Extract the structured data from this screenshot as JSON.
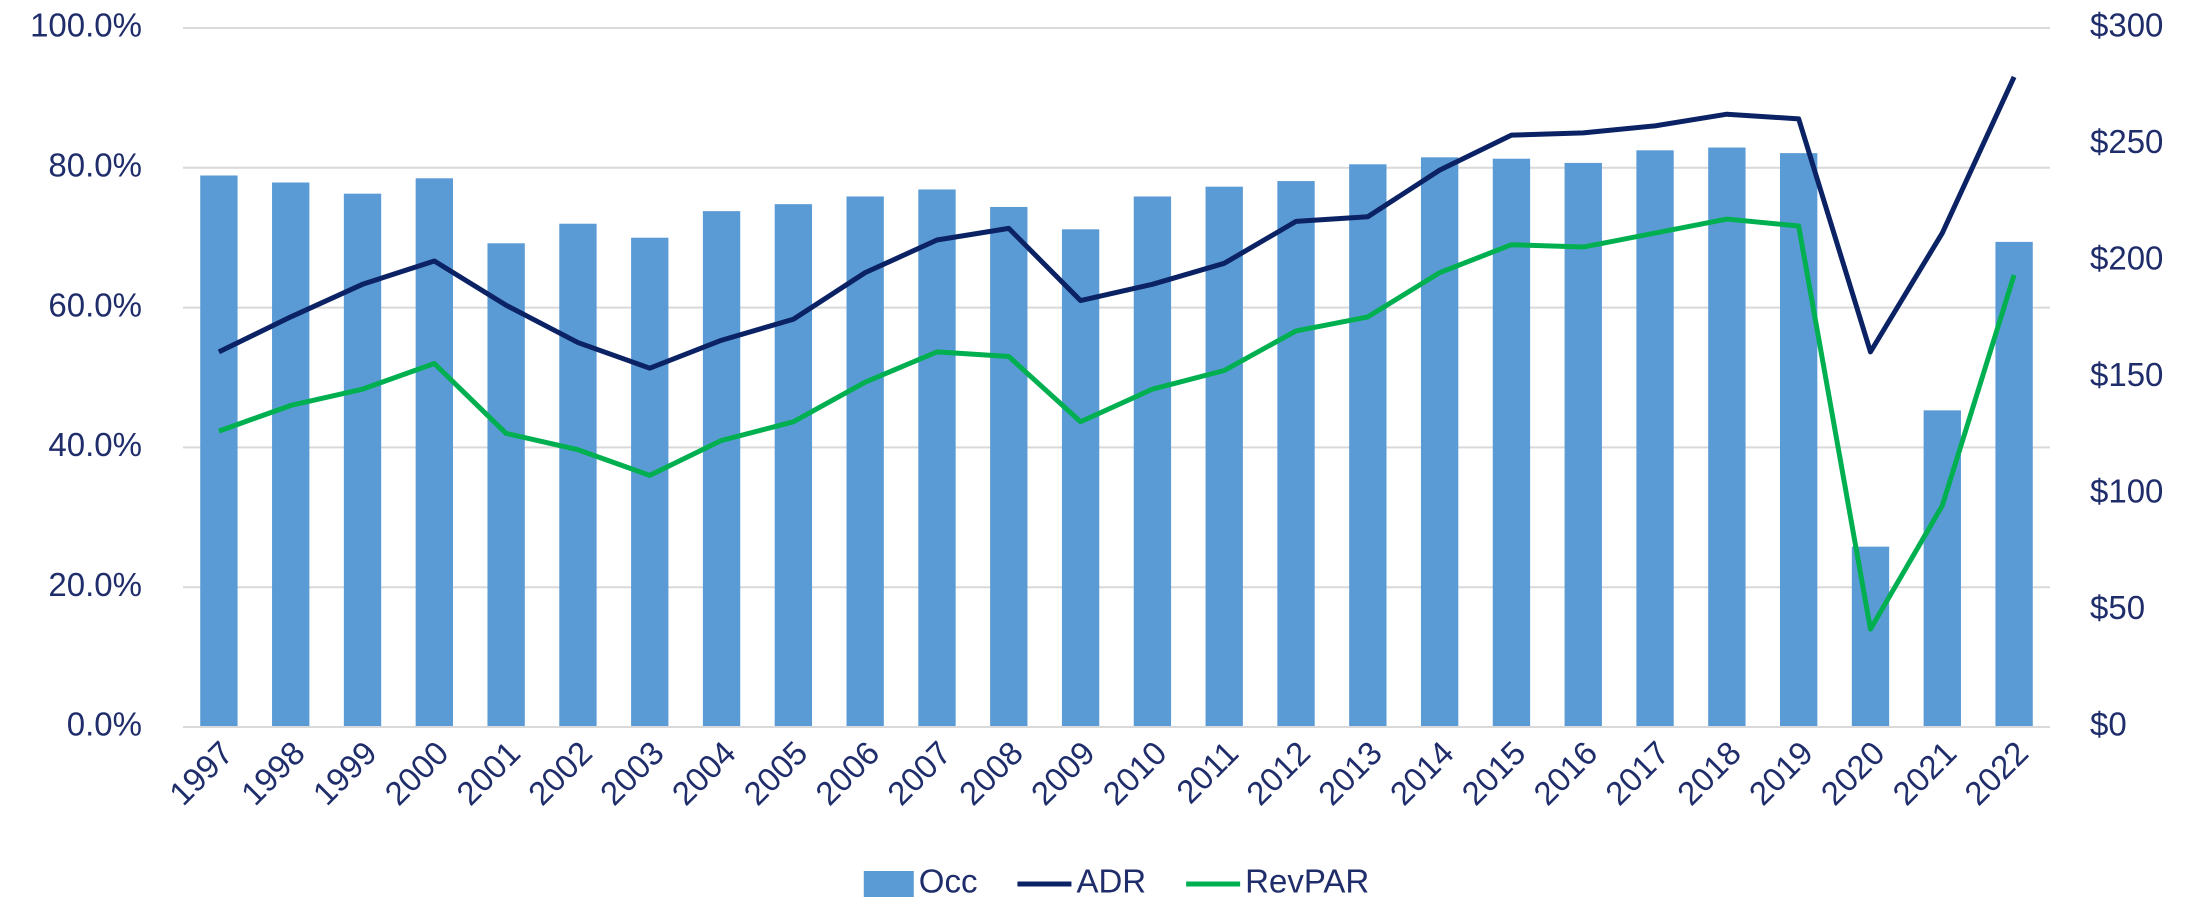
{
  "chart_data": {
    "type": "bar",
    "categories": [
      "1997",
      "1998",
      "1999",
      "2000",
      "2001",
      "2002",
      "2003",
      "2004",
      "2005",
      "2006",
      "2007",
      "2008",
      "2009",
      "2010",
      "2011",
      "2012",
      "2013",
      "2014",
      "2015",
      "2016",
      "2017",
      "2018",
      "2019",
      "2020",
      "2021",
      "2022"
    ],
    "series": [
      {
        "name": "Occ",
        "type": "bar",
        "color": "#5b9bd5",
        "values": [
          78.9,
          77.9,
          76.3,
          78.5,
          69.2,
          72.0,
          70.0,
          73.8,
          74.8,
          75.9,
          76.9,
          74.4,
          71.2,
          75.9,
          77.3,
          78.1,
          80.5,
          81.5,
          81.3,
          80.7,
          82.5,
          82.9,
          82.1,
          25.8,
          45.3,
          69.4
        ]
      },
      {
        "name": "ADR",
        "type": "line",
        "axis": "y2",
        "color": "#0b2265",
        "values": [
          161,
          176,
          190,
          200,
          181,
          165,
          154,
          166,
          175,
          195,
          209,
          214,
          183,
          190,
          199,
          217,
          219,
          239,
          254,
          255,
          258,
          263,
          261,
          161,
          212,
          279
        ]
      },
      {
        "name": "RevPAR",
        "type": "line",
        "axis": "y2",
        "color": "#00b050",
        "values": [
          127,
          138,
          145,
          156,
          126,
          119,
          108,
          123,
          131,
          148,
          161,
          159,
          131,
          145,
          153,
          170,
          176,
          195,
          207,
          206,
          212,
          218,
          215,
          42,
          95,
          194
        ]
      }
    ],
    "ylim": [
      0,
      100
    ],
    "yticks": [
      {
        "value": 0,
        "label": "0.0%"
      },
      {
        "value": 20,
        "label": "20.0%"
      },
      {
        "value": 40,
        "label": "40.0%"
      },
      {
        "value": 60,
        "label": "60.0%"
      },
      {
        "value": 80,
        "label": "80.0%"
      },
      {
        "value": 100,
        "label": "100.0%"
      }
    ],
    "y2lim": [
      0,
      300
    ],
    "y2ticks": [
      {
        "value": 0,
        "label": "$0"
      },
      {
        "value": 50,
        "label": "$50"
      },
      {
        "value": 100,
        "label": "$100"
      },
      {
        "value": 150,
        "label": "$150"
      },
      {
        "value": 200,
        "label": "$200"
      },
      {
        "value": 250,
        "label": "$250"
      },
      {
        "value": 300,
        "label": "$300"
      }
    ],
    "grid": true,
    "legend": "bottom"
  }
}
